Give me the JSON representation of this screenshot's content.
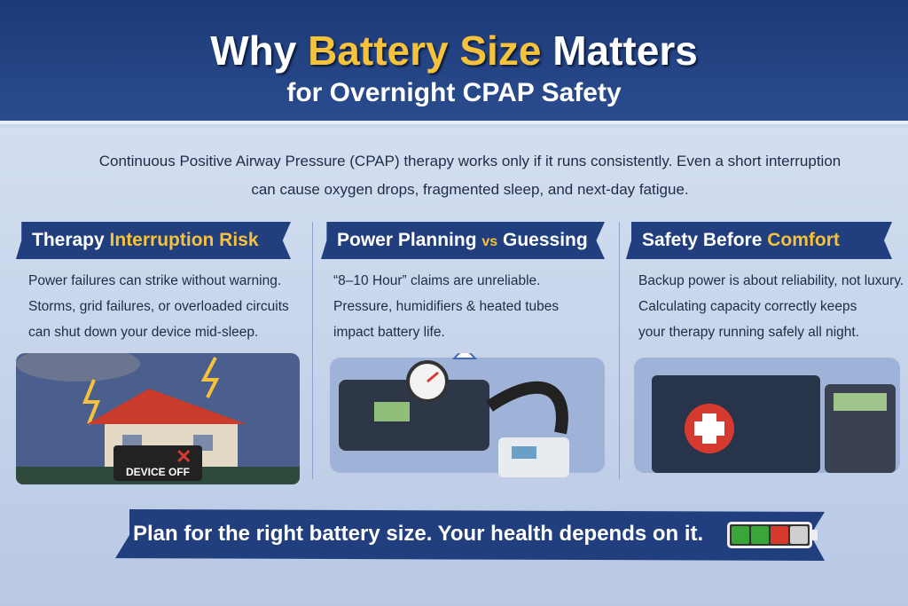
{
  "header": {
    "title_pre": "Why ",
    "title_highlight": "Battery Size",
    "title_post": " Matters",
    "subtitle": "for Overnight CPAP Safety"
  },
  "intro": {
    "line1": "Continuous Positive Airway Pressure (CPAP) therapy works only if it runs consistently. Even a short interruption",
    "line2": "can cause oxygen drops, fragmented sleep, and next-day fatigue."
  },
  "columns": [
    {
      "title": "Therapy ",
      "title_highlight": "Interruption Risk",
      "lines": [
        "Power failures can strike without warning.",
        "Storms, grid failures, or overloaded circuits",
        "can shut down your device mid-sleep."
      ],
      "label": "DEVICE OFF"
    },
    {
      "title": "Power Planning ",
      "title_highlight": "vs",
      "title_post": " Guessing",
      "lines": [
        "“8–10 Hour” claims are unreliable.",
        "Pressure, humidifiers & heated tubes",
        "impact battery life."
      ]
    },
    {
      "title": "Safety Before ",
      "title_highlight": "Comfort",
      "lines": [
        "Backup power is about reliability, not luxury.",
        "Calculating capacity correctly keeps",
        "your therapy running safely all night."
      ]
    }
  ],
  "footer": {
    "text": "Plan for the right battery size. Your health depends on it."
  },
  "colors": {
    "navy": "#213f7e",
    "gold": "#f6c23c",
    "battery": [
      "#3aa63a",
      "#3aa63a",
      "#d63a2f",
      "#cfcfcf"
    ]
  }
}
